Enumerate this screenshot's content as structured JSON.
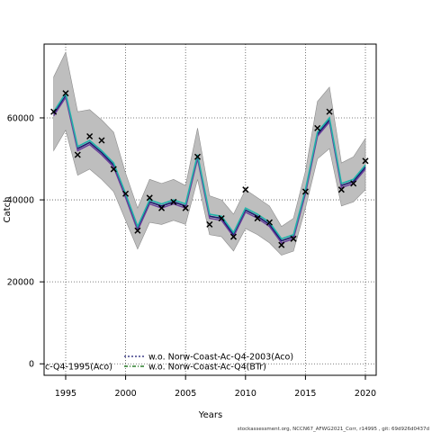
{
  "chart_data": {
    "type": "line",
    "xlabel": "Years",
    "ylabel": "Catch",
    "xlim": [
      1993.2,
      2020.9
    ],
    "ylim": [
      -2800,
      78000
    ],
    "x_ticks": [
      1995,
      2000,
      2005,
      2010,
      2015,
      2020
    ],
    "y_ticks": [
      0,
      20000,
      40000,
      60000
    ],
    "x_tick_labels": [
      "1995",
      "2000",
      "2005",
      "2010",
      "2015",
      "2020"
    ],
    "y_tick_labels": [
      "0",
      "20000",
      "40000",
      "60000"
    ],
    "grid": true,
    "grid_style": "dotted",
    "legend_position": "bottom-left",
    "x": [
      1994,
      1995,
      1996,
      1997,
      1998,
      1999,
      2000,
      2001,
      2002,
      2003,
      2004,
      2005,
      2006,
      2007,
      2008,
      2009,
      2010,
      2011,
      2012,
      2013,
      2014,
      2015,
      2016,
      2017,
      2018,
      2019,
      2020
    ],
    "band": {
      "lower": [
        52000,
        57000,
        46000,
        47500,
        45000,
        42000,
        35000,
        28000,
        34500,
        34000,
        35000,
        34000,
        45000,
        31500,
        31000,
        27500,
        33000,
        31500,
        29500,
        26500,
        27500,
        38000,
        50000,
        52500,
        38500,
        39500,
        42500
      ],
      "upper": [
        70000,
        76000,
        61500,
        62000,
        59500,
        56500,
        46500,
        38000,
        45000,
        44000,
        45000,
        43500,
        57500,
        41000,
        40000,
        36500,
        42500,
        40500,
        38500,
        33500,
        35500,
        47000,
        64000,
        67500,
        49000,
        50500,
        55000
      ]
    },
    "series": [
      {
        "values": [
          61000,
          65500,
          52500,
          54000,
          51500,
          48500,
          41000,
          33000,
          39500,
          38500,
          39500,
          38500,
          50500,
          36000,
          35500,
          31500,
          37500,
          36000,
          34000,
          30000,
          31000,
          42000,
          56000,
          59500,
          43500,
          44500,
          48000
        ]
      },
      {
        "values": [
          60500,
          65000,
          52000,
          53500,
          51000,
          48000,
          40500,
          32500,
          39000,
          38000,
          39000,
          38000,
          50000,
          35500,
          35000,
          31000,
          37000,
          35500,
          33500,
          29500,
          30500,
          41500,
          55500,
          59000,
          43000,
          44000,
          47500
        ]
      },
      {
        "values": [
          61500,
          66000,
          53000,
          54500,
          52000,
          49000,
          41500,
          33500,
          40000,
          39000,
          40000,
          39000,
          51000,
          36500,
          36000,
          32000,
          38000,
          36500,
          34500,
          30500,
          31500,
          42500,
          56500,
          60000,
          44000,
          45000,
          48500
        ]
      }
    ],
    "observations": {
      "x": [
        1994,
        1995,
        1996,
        1997,
        1998,
        1999,
        2000,
        2001,
        2002,
        2003,
        2004,
        2005,
        2006,
        2007,
        2008,
        2009,
        2010,
        2011,
        2012,
        2013,
        2014,
        2015,
        2016,
        2017,
        2018,
        2019,
        2020
      ],
      "y": [
        61500,
        66000,
        51000,
        55500,
        54500,
        47500,
        41500,
        32500,
        40500,
        38000,
        39500,
        38000,
        50500,
        34000,
        35500,
        31000,
        42500,
        35500,
        34500,
        29000,
        30500,
        42000,
        57500,
        61500,
        42500,
        44000,
        49500
      ]
    },
    "legend": [
      "w.o. Norw-Coast-Ac-Q4-2003(Aco)",
      "w.o. Norw-Coast-Ac-Q4(BTr)"
    ],
    "legend_partial_label": "c-Q4-1995(Aco)",
    "colors": {
      "band": "#bebebe",
      "band_edge": "#8c8c8c",
      "line_navy": "#191970",
      "line_purple": "#6a3d9a",
      "line_teal": "#20b2aa",
      "grid": "#555555",
      "marker": "#000000"
    }
  },
  "footer": {
    "text": "stockassessment.org, NCCN67_AFWG2021_Corr, r14995 , git: 69d926d0437d"
  }
}
